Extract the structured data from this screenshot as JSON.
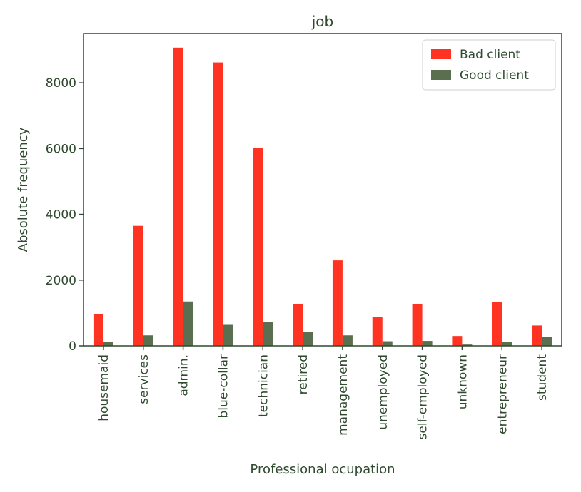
{
  "chart_data": {
    "type": "bar",
    "title": "job",
    "xlabel": "Professional ocupation",
    "ylabel": "Absolute frequency",
    "categories": [
      "housemaid",
      "services",
      "admin.",
      "blue-collar",
      "technician",
      "retired",
      "management",
      "unemployed",
      "self-employed",
      "unknown",
      "entrepreneur",
      "student"
    ],
    "series": [
      {
        "name": "Bad client",
        "color": "#ff3322",
        "values": [
          960,
          3650,
          9070,
          8620,
          6010,
          1280,
          2600,
          880,
          1280,
          300,
          1330,
          620
        ]
      },
      {
        "name": "Good client",
        "color": "#5a6e50",
        "values": [
          110,
          320,
          1350,
          640,
          730,
          430,
          320,
          140,
          150,
          40,
          130,
          270
        ]
      }
    ],
    "yticks": [
      0,
      2000,
      4000,
      6000,
      8000
    ],
    "ylim": [
      0,
      9500
    ],
    "grid": false,
    "legend_position": "top-right",
    "colors": {
      "axis": "#2f4a2f",
      "bad": "#ff3322",
      "good": "#5a6e50"
    }
  }
}
